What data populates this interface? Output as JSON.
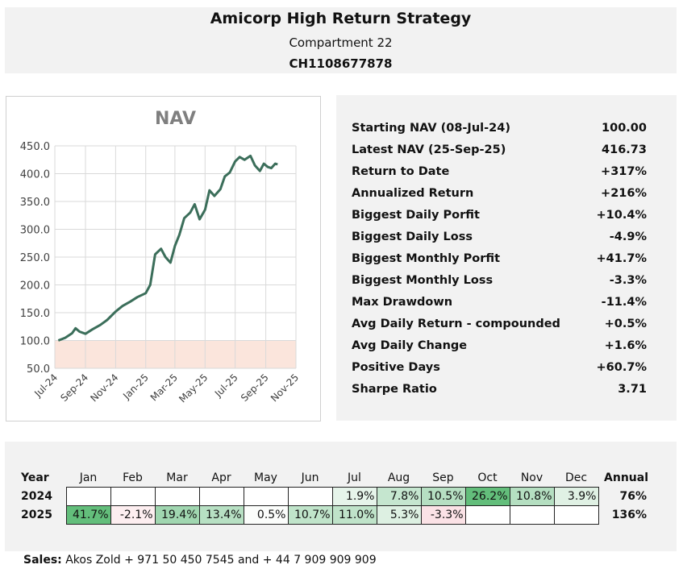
{
  "header": {
    "title": "Amicorp High Return Strategy",
    "subtitle": "Compartment 22",
    "isin": "CH1108677878"
  },
  "stats": [
    {
      "label": "Starting NAV (08-Jul-24)",
      "value": "100.00"
    },
    {
      "label": "Latest NAV (25-Sep-25)",
      "value": "416.73"
    },
    {
      "label": "Return to Date",
      "value": "+317%"
    },
    {
      "label": "Annualized Return",
      "value": "+216%"
    },
    {
      "label": "Biggest Daily Porfit",
      "value": "+10.4%"
    },
    {
      "label": "Biggest Daily Loss",
      "value": "-4.9%"
    },
    {
      "label": "Biggest Monthly Porfit",
      "value": "+41.7%"
    },
    {
      "label": "Biggest Monthly Loss",
      "value": "-3.3%"
    },
    {
      "label": "Max Drawdown",
      "value": "-11.4%"
    },
    {
      "label": "Avg Daily Return - compounded",
      "value": "+0.5%"
    },
    {
      "label": "Avg Daily Change",
      "value": "+1.6%"
    },
    {
      "label": "Positive Days",
      "value": "+60.7%"
    },
    {
      "label": "Sharpe Ratio",
      "value": "3.71"
    }
  ],
  "monthly": {
    "year_header": "Year",
    "months": [
      "Jan",
      "Feb",
      "Mar",
      "Apr",
      "May",
      "Jun",
      "Jul",
      "Aug",
      "Sep",
      "Oct",
      "Nov",
      "Dec"
    ],
    "annual_header": "Annual",
    "rows": [
      {
        "year": "2024",
        "cells": [
          "",
          "",
          "",
          "",
          "",
          "",
          "1.9%",
          "7.8%",
          "10.5%",
          "26.2%",
          "10.8%",
          "3.9%"
        ],
        "colors": [
          "",
          "",
          "",
          "",
          "",
          "",
          "#e6f4ea",
          "#c5e6cf",
          "#b6dfc2",
          "#63be7b",
          "#b5dfc1",
          "#e0f1e4"
        ],
        "annual": "76%"
      },
      {
        "year": "2025",
        "cells": [
          "41.7%",
          "-2.1%",
          "19.4%",
          "13.4%",
          "0.5%",
          "10.7%",
          "11.0%",
          "5.3%",
          "-3.3%",
          "",
          "",
          ""
        ],
        "colors": [
          "#63be7b",
          "#fdeef0",
          "#a0d6b0",
          "#b7e0c3",
          "#fbfdfb",
          "#c0e4ca",
          "#bfe3c9",
          "#ddf0e2",
          "#fbe2e6",
          "",
          "",
          ""
        ],
        "annual": "136%"
      }
    ]
  },
  "sales": {
    "label": "Sales:",
    "text": "Akos Zold + 971 50 450 7545 and + 44 7 909 909 909"
  },
  "chart_data": {
    "type": "line",
    "title": "NAV",
    "xlabel": "",
    "ylabel": "",
    "ylim": [
      50,
      450
    ],
    "yticks": [
      "450.0",
      "400.0",
      "350.0",
      "300.0",
      "250.0",
      "200.0",
      "150.0",
      "100.0",
      "50.0"
    ],
    "xticks": [
      "Jul-24",
      "Sep-24",
      "Nov-24",
      "Jan-25",
      "Mar-25",
      "May-25",
      "Jul-25",
      "Sep-25",
      "Nov-25"
    ],
    "grid": true,
    "shaded_band": [
      50,
      100
    ],
    "colors": {
      "line": "#3b6e5a",
      "band": "#fbe5dc",
      "grid": "#d9d9d9"
    },
    "series": [
      {
        "x": [
          "2024-07-08",
          "2024-07-22",
          "2024-08-05",
          "2024-08-12",
          "2024-08-20",
          "2024-09-01",
          "2024-09-15",
          "2024-10-01",
          "2024-10-15",
          "2024-11-01",
          "2024-11-15",
          "2024-12-01",
          "2024-12-15",
          "2025-01-01",
          "2025-01-10",
          "2025-01-20",
          "2025-02-01",
          "2025-02-10",
          "2025-02-20",
          "2025-03-01",
          "2025-03-10",
          "2025-03-20",
          "2025-04-01",
          "2025-04-10",
          "2025-04-20",
          "2025-05-01",
          "2025-05-10",
          "2025-05-20",
          "2025-06-01",
          "2025-06-10",
          "2025-06-20",
          "2025-07-01",
          "2025-07-10",
          "2025-07-20",
          "2025-08-01",
          "2025-08-10",
          "2025-08-20",
          "2025-08-28",
          "2025-09-05",
          "2025-09-12",
          "2025-09-20",
          "2025-09-25"
        ],
        "y": [
          100,
          105,
          113,
          122,
          116,
          112,
          120,
          128,
          137,
          152,
          162,
          170,
          178,
          185,
          200,
          255,
          265,
          250,
          240,
          270,
          290,
          320,
          330,
          345,
          318,
          335,
          370,
          360,
          372,
          395,
          402,
          422,
          430,
          425,
          432,
          415,
          405,
          418,
          412,
          410,
          418,
          416.73
        ]
      }
    ]
  }
}
